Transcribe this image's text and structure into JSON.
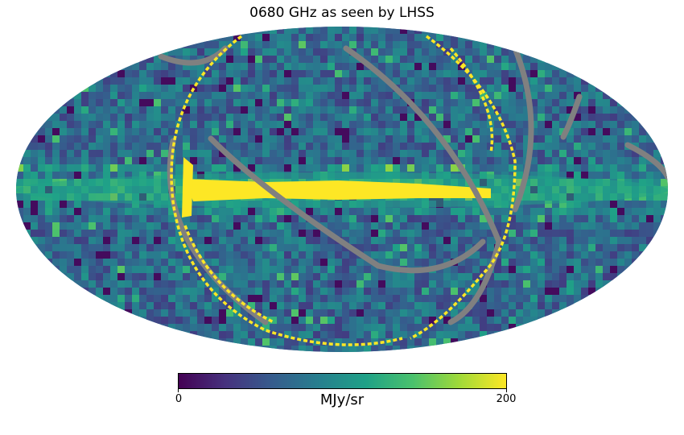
{
  "chart_data": {
    "type": "heatmap",
    "projection": "mollweide",
    "title": "0680 GHz as seen by LHSS",
    "colormap": "viridis",
    "colormap_stops": [
      "#440154",
      "#46327e",
      "#365c8d",
      "#277f8e",
      "#1fa187",
      "#4ac16d",
      "#a0da39",
      "#fde725"
    ],
    "masked_color": "#808080",
    "colorbar": {
      "label": "MJy/sr",
      "min": 0,
      "max": 200,
      "tick_labels": [
        "0",
        "200"
      ],
      "orientation": "horizontal",
      "placement": "bottom"
    },
    "features": [
      {
        "kind": "galactic-plane",
        "value_MJy_sr": 200,
        "lon_range_deg": [
          -95,
          85
        ]
      },
      {
        "kind": "background-sky",
        "value_range_MJy_sr": [
          10,
          130
        ]
      },
      {
        "kind": "scan-gaps",
        "value": "masked (no data)"
      }
    ]
  }
}
